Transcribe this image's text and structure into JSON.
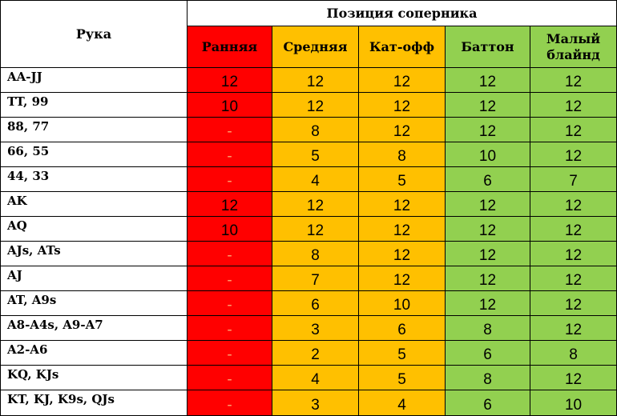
{
  "header": {
    "hand_label": "Рука",
    "position_group_label": "Позиция соперника",
    "positions": [
      "Ранняя",
      "Средняя",
      "Кат-офф",
      "Баттон",
      "Малый блайнд"
    ]
  },
  "colors": {
    "early": "#ff0000",
    "middle_cutoff": "#ffc000",
    "late": "#92d050"
  },
  "rows": [
    {
      "hand": "AA-JJ",
      "values": [
        "12",
        "12",
        "12",
        "12",
        "12"
      ]
    },
    {
      "hand": "TT, 99",
      "values": [
        "10",
        "12",
        "12",
        "12",
        "12"
      ]
    },
    {
      "hand": "88, 77",
      "values": [
        "-",
        "8",
        "12",
        "12",
        "12"
      ]
    },
    {
      "hand": "66, 55",
      "values": [
        "-",
        "5",
        "8",
        "10",
        "12"
      ]
    },
    {
      "hand": "44, 33",
      "values": [
        "-",
        "4",
        "5",
        "6",
        "7"
      ]
    },
    {
      "hand": "AK",
      "values": [
        "12",
        "12",
        "12",
        "12",
        "12"
      ]
    },
    {
      "hand": "AQ",
      "values": [
        "10",
        "12",
        "12",
        "12",
        "12"
      ]
    },
    {
      "hand": "AJs, ATs",
      "values": [
        "-",
        "8",
        "12",
        "12",
        "12"
      ]
    },
    {
      "hand": "AJ",
      "values": [
        "-",
        "7",
        "12",
        "12",
        "12"
      ]
    },
    {
      "hand": "AT, A9s",
      "values": [
        "-",
        "6",
        "10",
        "12",
        "12"
      ]
    },
    {
      "hand": "A8-A4s, A9-A7",
      "values": [
        "-",
        "3",
        "6",
        "8",
        "12"
      ]
    },
    {
      "hand": "A2-A6",
      "values": [
        "-",
        "2",
        "5",
        "6",
        "8"
      ]
    },
    {
      "hand": "KQ, KJs",
      "values": [
        "-",
        "4",
        "5",
        "8",
        "12"
      ]
    },
    {
      "hand": "KT, KJ, K9s, QJs",
      "values": [
        "-",
        "3",
        "4",
        "6",
        "10"
      ]
    }
  ]
}
